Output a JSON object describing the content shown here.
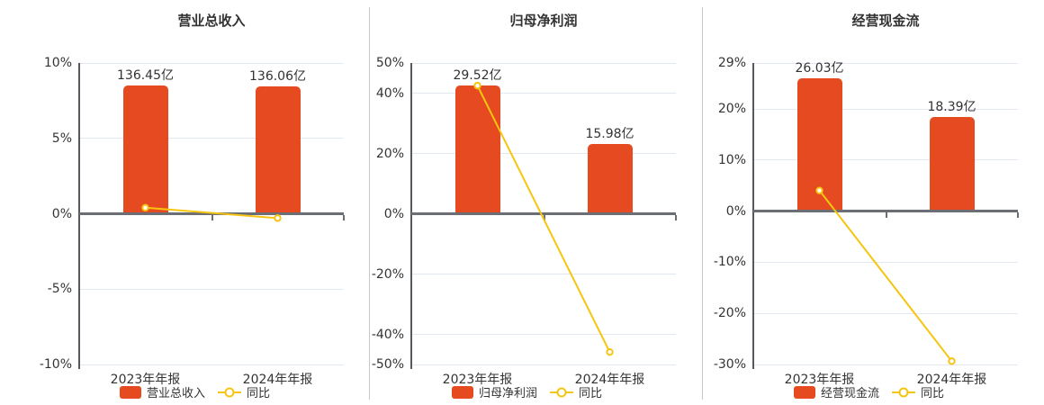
{
  "page": {
    "background": "#ffffff"
  },
  "colors": {
    "bar": "#e64a21",
    "line": "#f5c511",
    "grid": "#e2e8f1",
    "zero_axis": "#6b6e74",
    "y_axis": "#55585e",
    "divider": "#c6c6c3",
    "text": "#333333"
  },
  "chart_data": [
    {
      "type": "bar",
      "title": "营业总收入",
      "categories": [
        "2023年年报",
        "2024年年报"
      ],
      "bar_series": {
        "name": "营业总收入",
        "unit": "亿",
        "values": [
          136.45,
          136.06
        ],
        "labels": [
          "136.45亿",
          "136.06亿"
        ]
      },
      "line_series": {
        "name": "同比",
        "values_pct": [
          0.4,
          -0.29
        ]
      },
      "ylim": [
        -10,
        10
      ],
      "yticks": [
        10,
        5,
        0,
        -5,
        -10
      ],
      "ytick_labels": [
        "10%",
        "5%",
        "0%",
        "-5%",
        "-10%"
      ],
      "bar_axis_max": 160.5,
      "legend": [
        "营业总收入",
        "同比"
      ],
      "grid": true,
      "legend_position": "bottom"
    },
    {
      "type": "bar",
      "title": "归母净利润",
      "categories": [
        "2023年年报",
        "2024年年报"
      ],
      "bar_series": {
        "name": "归母净利润",
        "unit": "亿",
        "values": [
          29.52,
          15.98
        ],
        "labels": [
          "29.52亿",
          "15.98亿"
        ]
      },
      "line_series": {
        "name": "同比",
        "values_pct": [
          42.5,
          -45.87
        ]
      },
      "ylim": [
        -50,
        50
      ],
      "yticks": [
        50,
        40,
        20,
        0,
        -20,
        -40,
        -50
      ],
      "ytick_labels": [
        "50%",
        "40%",
        "20%",
        "0%",
        "-20%",
        "-40%",
        "-50%"
      ],
      "bar_axis_max": 34.7,
      "legend": [
        "归母净利润",
        "同比"
      ],
      "grid": true,
      "legend_position": "bottom"
    },
    {
      "type": "bar",
      "title": "经营现金流",
      "categories": [
        "2023年年报",
        "2024年年报"
      ],
      "bar_series": {
        "name": "经营现金流",
        "unit": "亿",
        "values": [
          26.03,
          18.39
        ],
        "labels": [
          "26.03亿",
          "18.39亿"
        ]
      },
      "line_series": {
        "name": "同比",
        "values_pct": [
          4.05,
          -29.35
        ]
      },
      "ylim": [
        -30,
        29
      ],
      "yticks": [
        29,
        20,
        10,
        0,
        -10,
        -20,
        -30
      ],
      "ytick_labels": [
        "29%",
        "20%",
        "10%",
        "0%",
        "-10%",
        "-20%",
        "-30%"
      ],
      "bar_axis_max": 29,
      "legend": [
        "经营现金流",
        "同比"
      ],
      "grid": true,
      "legend_position": "bottom"
    }
  ]
}
